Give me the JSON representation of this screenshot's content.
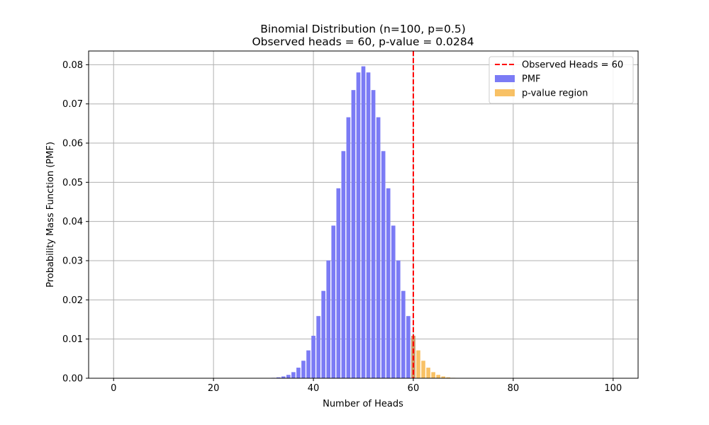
{
  "chart_data": {
    "type": "bar",
    "title": "Binomial Distribution (n=100, p=0.5)",
    "subtitle": "Observed heads = 60, p-value = 0.0284",
    "xlabel": "Number of Heads",
    "ylabel": "Probability Mass Function (PMF)",
    "xlim": [
      -5,
      105
    ],
    "ylim": [
      0,
      0.0835
    ],
    "xticks": [
      0,
      20,
      40,
      60,
      80,
      100
    ],
    "yticks": [
      0.0,
      0.01,
      0.02,
      0.03,
      0.04,
      0.05,
      0.06,
      0.07,
      0.08
    ],
    "ytick_labels": [
      "0.00",
      "0.01",
      "0.02",
      "0.03",
      "0.04",
      "0.05",
      "0.06",
      "0.07",
      "0.08"
    ],
    "grid": true,
    "legend_position": "top-right",
    "bar_width": 0.8,
    "series": [
      {
        "name": "PMF",
        "color": "#7b7bf5",
        "x": [
          30,
          31,
          32,
          33,
          34,
          35,
          36,
          37,
          38,
          39,
          40,
          41,
          42,
          43,
          44,
          45,
          46,
          47,
          48,
          49,
          50,
          51,
          52,
          53,
          54,
          55,
          56,
          57,
          58,
          59,
          60
        ],
        "values": [
          2e-05,
          5e-05,
          0.00011,
          0.00023,
          0.00046,
          0.00086,
          0.00156,
          0.0027,
          0.00447,
          0.00711,
          0.01084,
          0.01587,
          0.02229,
          0.03007,
          0.03895,
          0.04847,
          0.05796,
          0.06659,
          0.07353,
          0.07803,
          0.07959,
          0.07803,
          0.07353,
          0.06659,
          0.05796,
          0.04847,
          0.03895,
          0.03007,
          0.02229,
          0.01587,
          0.01084
        ]
      },
      {
        "name": "p-value region",
        "color": "#f5a623",
        "alpha": 0.7,
        "x": [
          60,
          61,
          62,
          63,
          64,
          65,
          66,
          67,
          68,
          69,
          70
        ],
        "values": [
          0.01084,
          0.00711,
          0.00447,
          0.0027,
          0.00156,
          0.00086,
          0.00046,
          0.00023,
          0.00011,
          5e-05,
          2e-05
        ]
      }
    ],
    "annotations": [
      {
        "type": "vline",
        "x": 60,
        "color": "#ff0000",
        "style": "dashed",
        "label": "Observed Heads = 60"
      }
    ]
  }
}
